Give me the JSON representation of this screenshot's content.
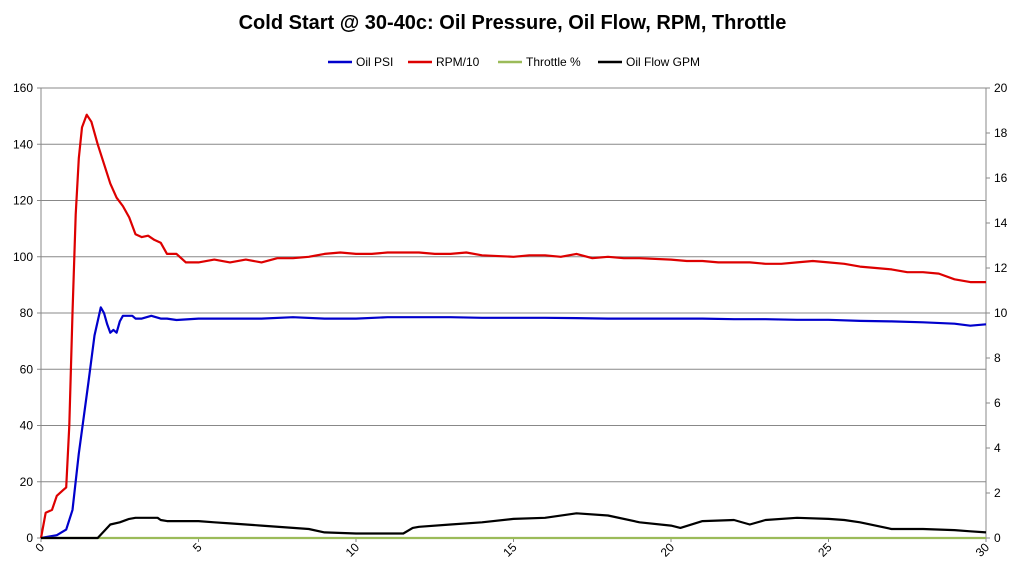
{
  "chart_data": {
    "type": "line",
    "title": "Cold Start @ 30-40c: Oil Pressure, Oil Flow, RPM, Throttle",
    "xlim": [
      0,
      30
    ],
    "x_ticks": [
      0,
      5,
      10,
      15,
      20,
      25,
      30
    ],
    "ylim_left": [
      0,
      160
    ],
    "y_ticks_left": [
      0,
      20,
      40,
      60,
      80,
      100,
      120,
      140,
      160
    ],
    "ylim_right": [
      0,
      20
    ],
    "y_ticks_right": [
      0,
      2,
      4,
      6,
      8,
      10,
      12,
      14,
      16,
      18,
      20
    ],
    "grid": "horizontal",
    "legend_position": "top",
    "series": [
      {
        "name": "Oil PSI",
        "axis": "left",
        "color": "#0000CC",
        "points": [
          [
            0,
            0
          ],
          [
            0.5,
            1
          ],
          [
            0.8,
            3
          ],
          [
            1.0,
            10
          ],
          [
            1.2,
            30
          ],
          [
            1.5,
            55
          ],
          [
            1.7,
            72
          ],
          [
            1.9,
            82
          ],
          [
            2.0,
            80
          ],
          [
            2.1,
            76
          ],
          [
            2.2,
            73
          ],
          [
            2.3,
            74
          ],
          [
            2.4,
            73
          ],
          [
            2.5,
            77
          ],
          [
            2.6,
            79
          ],
          [
            2.9,
            79
          ],
          [
            3.0,
            78
          ],
          [
            3.2,
            78
          ],
          [
            3.5,
            79
          ],
          [
            3.8,
            78
          ],
          [
            4.0,
            78
          ],
          [
            4.3,
            77.5
          ],
          [
            5,
            78
          ],
          [
            6,
            78
          ],
          [
            7,
            78
          ],
          [
            8,
            78.5
          ],
          [
            9,
            78
          ],
          [
            10,
            78
          ],
          [
            11,
            78.5
          ],
          [
            12,
            78.5
          ],
          [
            13,
            78.5
          ],
          [
            14,
            78.3
          ],
          [
            15,
            78.3
          ],
          [
            16,
            78.3
          ],
          [
            17,
            78.2
          ],
          [
            18,
            78
          ],
          [
            19,
            78
          ],
          [
            20,
            78
          ],
          [
            21,
            78
          ],
          [
            22,
            77.8
          ],
          [
            23,
            77.8
          ],
          [
            24,
            77.6
          ],
          [
            25,
            77.6
          ],
          [
            26,
            77.2
          ],
          [
            27,
            77
          ],
          [
            28,
            76.7
          ],
          [
            29,
            76.2
          ],
          [
            29.5,
            75.5
          ],
          [
            30,
            76
          ]
        ]
      },
      {
        "name": "RPM/10",
        "axis": "left",
        "color": "#DD0000",
        "points": [
          [
            0,
            0
          ],
          [
            0.15,
            9
          ],
          [
            0.35,
            10
          ],
          [
            0.5,
            15
          ],
          [
            0.7,
            17
          ],
          [
            0.8,
            18
          ],
          [
            0.9,
            40
          ],
          [
            1.0,
            80
          ],
          [
            1.1,
            115
          ],
          [
            1.2,
            135
          ],
          [
            1.3,
            146
          ],
          [
            1.45,
            150.5
          ],
          [
            1.6,
            148
          ],
          [
            1.8,
            140
          ],
          [
            2.0,
            133
          ],
          [
            2.2,
            126
          ],
          [
            2.4,
            121
          ],
          [
            2.6,
            118
          ],
          [
            2.8,
            114
          ],
          [
            3.0,
            108
          ],
          [
            3.2,
            107
          ],
          [
            3.4,
            107.5
          ],
          [
            3.6,
            106
          ],
          [
            3.8,
            105
          ],
          [
            4.0,
            101
          ],
          [
            4.3,
            101
          ],
          [
            4.6,
            98
          ],
          [
            5,
            98
          ],
          [
            5.5,
            99
          ],
          [
            6,
            98
          ],
          [
            6.5,
            99
          ],
          [
            7,
            98
          ],
          [
            7.5,
            99.5
          ],
          [
            8,
            99.5
          ],
          [
            8.5,
            100
          ],
          [
            9,
            101
          ],
          [
            9.5,
            101.5
          ],
          [
            10,
            101
          ],
          [
            10.5,
            101
          ],
          [
            11,
            101.5
          ],
          [
            12,
            101.5
          ],
          [
            12.5,
            101
          ],
          [
            13,
            101
          ],
          [
            13.5,
            101.5
          ],
          [
            14,
            100.5
          ],
          [
            15,
            100
          ],
          [
            15.5,
            100.5
          ],
          [
            16,
            100.5
          ],
          [
            16.5,
            100
          ],
          [
            17,
            101
          ],
          [
            17.5,
            99.5
          ],
          [
            18,
            100
          ],
          [
            18.5,
            99.5
          ],
          [
            19,
            99.5
          ],
          [
            20,
            99
          ],
          [
            20.5,
            98.5
          ],
          [
            21,
            98.5
          ],
          [
            21.5,
            98
          ],
          [
            22,
            98
          ],
          [
            22.5,
            98
          ],
          [
            23,
            97.5
          ],
          [
            23.5,
            97.5
          ],
          [
            24,
            98
          ],
          [
            24.5,
            98.5
          ],
          [
            25,
            98
          ],
          [
            25.5,
            97.5
          ],
          [
            26,
            96.5
          ],
          [
            26.5,
            96
          ],
          [
            27,
            95.5
          ],
          [
            27.5,
            94.5
          ],
          [
            28,
            94.5
          ],
          [
            28.5,
            94
          ],
          [
            29,
            92
          ],
          [
            29.5,
            91
          ],
          [
            30,
            91
          ]
        ]
      },
      {
        "name": "Throttle %",
        "axis": "left",
        "color": "#9BBB59",
        "points": [
          [
            0,
            0
          ],
          [
            30,
            0
          ]
        ]
      },
      {
        "name": "Oil Flow GPM",
        "axis": "right",
        "color": "#000000",
        "points": [
          [
            0,
            0
          ],
          [
            1.8,
            0
          ],
          [
            2.0,
            0.3
          ],
          [
            2.2,
            0.6
          ],
          [
            2.5,
            0.7
          ],
          [
            2.8,
            0.85
          ],
          [
            3.0,
            0.9
          ],
          [
            3.3,
            0.9
          ],
          [
            3.7,
            0.9
          ],
          [
            3.8,
            0.8
          ],
          [
            4,
            0.75
          ],
          [
            5,
            0.75
          ],
          [
            5.5,
            0.7
          ],
          [
            6,
            0.65
          ],
          [
            7,
            0.55
          ],
          [
            8,
            0.45
          ],
          [
            8.5,
            0.4
          ],
          [
            9,
            0.25
          ],
          [
            10,
            0.2
          ],
          [
            11,
            0.2
          ],
          [
            11.5,
            0.2
          ],
          [
            11.8,
            0.45
          ],
          [
            12,
            0.5
          ],
          [
            13,
            0.6
          ],
          [
            14,
            0.7
          ],
          [
            15,
            0.85
          ],
          [
            16,
            0.9
          ],
          [
            17,
            1.1
          ],
          [
            18,
            1.0
          ],
          [
            19,
            0.7
          ],
          [
            20,
            0.55
          ],
          [
            20.3,
            0.45
          ],
          [
            21,
            0.75
          ],
          [
            22,
            0.8
          ],
          [
            22.5,
            0.6
          ],
          [
            23,
            0.8
          ],
          [
            24,
            0.9
          ],
          [
            25,
            0.85
          ],
          [
            25.5,
            0.8
          ],
          [
            26,
            0.7
          ],
          [
            27,
            0.4
          ],
          [
            28,
            0.4
          ],
          [
            29,
            0.35
          ],
          [
            29.5,
            0.3
          ],
          [
            30,
            0.25
          ]
        ]
      }
    ]
  }
}
